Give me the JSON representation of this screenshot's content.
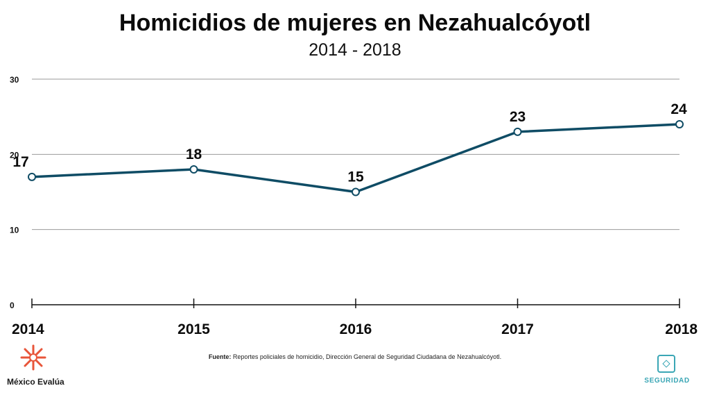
{
  "header": {
    "title": "Homicidios de mujeres en Nezahualcóyotl",
    "subtitle": "2014 - 2018"
  },
  "chart_data": {
    "type": "line",
    "title": "Homicidios de mujeres en Nezahualcóyotl",
    "subtitle": "2014 - 2018",
    "categories": [
      "2014",
      "2015",
      "2016",
      "2017",
      "2018"
    ],
    "values": [
      17,
      18,
      15,
      23,
      24
    ],
    "data_labels": [
      "17",
      "18",
      "15",
      "23",
      "24"
    ],
    "yticks": [
      0,
      10,
      20,
      30
    ],
    "ylim": [
      0,
      30
    ],
    "grid": true,
    "legend": "none",
    "line_color": "#0f4c65",
    "marker": "open-circle"
  },
  "footer": {
    "source_label": "Fuente:",
    "source_text": " Reportes policiales de homicidio, Dirección General de Seguridad Ciudadana de Nezahualcóyotl.",
    "brand_name": "México Evalúa",
    "section_label": "SEGURIDAD",
    "brand_color": "#e8553a",
    "section_color": "#3aa6b5"
  }
}
